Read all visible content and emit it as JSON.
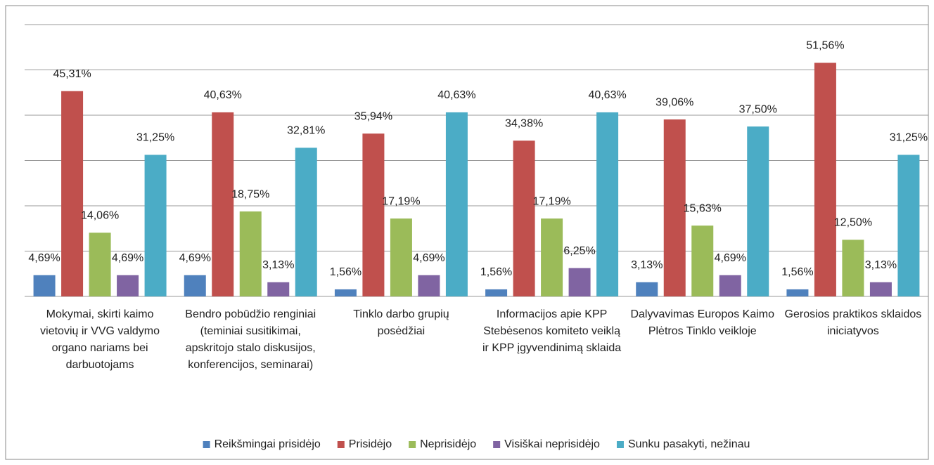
{
  "chart_data": {
    "type": "bar",
    "categories": [
      "Mokymai, skirti kaimo vietovių ir VVG valdymo organo nariams bei darbuotojams",
      "Bendro pobūdžio renginiai (teminiai susitikimai, apskritojo stalo diskusijos, konferencijos, seminarai)",
      "Tinklo darbo grupių posėdžiai",
      "Informacijos apie KPP Stebėsenos komiteto veiklą ir KPP įgyvendinimą sklaida",
      "Dalyvavimas  Europos Kaimo Plėtros Tinklo veikloje",
      "Gerosios praktikos sklaidos iniciatyvos"
    ],
    "series": [
      {
        "name": "Reikšmingai prisidėjo",
        "color": "#4f81bd",
        "values": [
          4.69,
          4.69,
          1.56,
          1.56,
          3.13,
          1.56
        ],
        "value_labels": [
          "4,69%",
          "4,69%",
          "1,56%",
          "1,56%",
          "3,13%",
          "1,56%"
        ]
      },
      {
        "name": "Prisidėjo",
        "color": "#c0504d",
        "values": [
          45.31,
          40.63,
          35.94,
          34.38,
          39.06,
          51.56
        ],
        "value_labels": [
          "45,31%",
          "40,63%",
          "35,94%",
          "34,38%",
          "39,06%",
          "51,56%"
        ]
      },
      {
        "name": "Neprisidėjo",
        "color": "#9bbb59",
        "values": [
          14.06,
          18.75,
          17.19,
          17.19,
          15.63,
          12.5
        ],
        "value_labels": [
          "14,06%",
          "18,75%",
          "17,19%",
          "17,19%",
          "15,63%",
          "12,50%"
        ]
      },
      {
        "name": "Visiškai neprisidėjo",
        "color": "#8064a2",
        "values": [
          4.69,
          3.13,
          4.69,
          6.25,
          4.69,
          3.13
        ],
        "value_labels": [
          "4,69%",
          "3,13%",
          "4,69%",
          "6,25%",
          "4,69%",
          "3,13%"
        ]
      },
      {
        "name": "Sunku pasakyti, nežinau",
        "color": "#4bacc6",
        "values": [
          31.25,
          32.81,
          40.63,
          40.63,
          37.5,
          31.25
        ],
        "value_labels": [
          "31,25%",
          "32,81%",
          "40,63%",
          "40,63%",
          "37,50%",
          "31,25%"
        ]
      }
    ],
    "ylim": [
      0,
      60
    ],
    "yticks": [
      0,
      10,
      20,
      30,
      40,
      50,
      60
    ],
    "grid": true,
    "legend": "bottom"
  }
}
